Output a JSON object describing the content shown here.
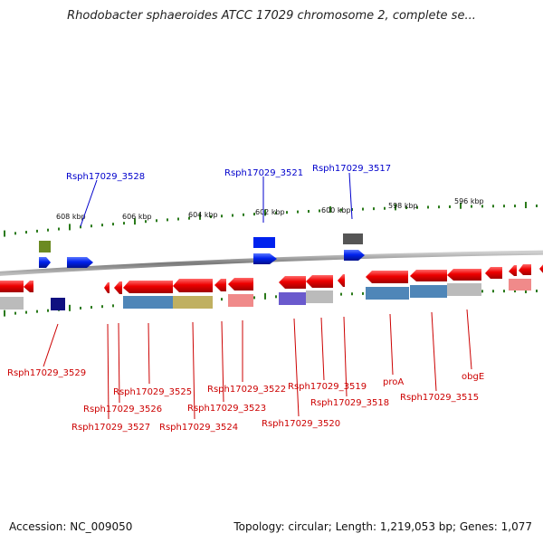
{
  "title": "Rhodobacter sphaeroides ATCC 17029 chromosome 2, complete se...",
  "footer": {
    "accession": "Accession: NC_009050",
    "topology": "Topology: circular; Length: 1,219,053 bp; Genes: 1,077"
  },
  "colors": {
    "forward_label": "#0000cc",
    "reverse_label": "#cc0000",
    "backbone": "#888888",
    "ticks": "#2a7a1a",
    "gene_red": "#ee0000",
    "gene_blue": "#0022ee"
  },
  "scale_labels": [
    "608 kbp",
    "606 kbp",
    "604 kbp",
    "602 kbp",
    "600 kbp",
    "598 kbp",
    "596 kbp"
  ],
  "top_labels": [
    "Rsph17029_3528",
    "Rsph17029_3521",
    "Rsph17029_3517"
  ],
  "bottom_labels": [
    "Rsph17029_3529",
    "Rsph17029_3527",
    "Rsph17029_3526",
    "Rsph17029_3525",
    "Rsph17029_3524",
    "Rsph17029_3523",
    "Rsph17029_3522",
    "Rsph17029_3520",
    "Rsph17029_3519",
    "Rsph17029_3518",
    "proA",
    "Rsph17029_3515",
    "obgE"
  ]
}
